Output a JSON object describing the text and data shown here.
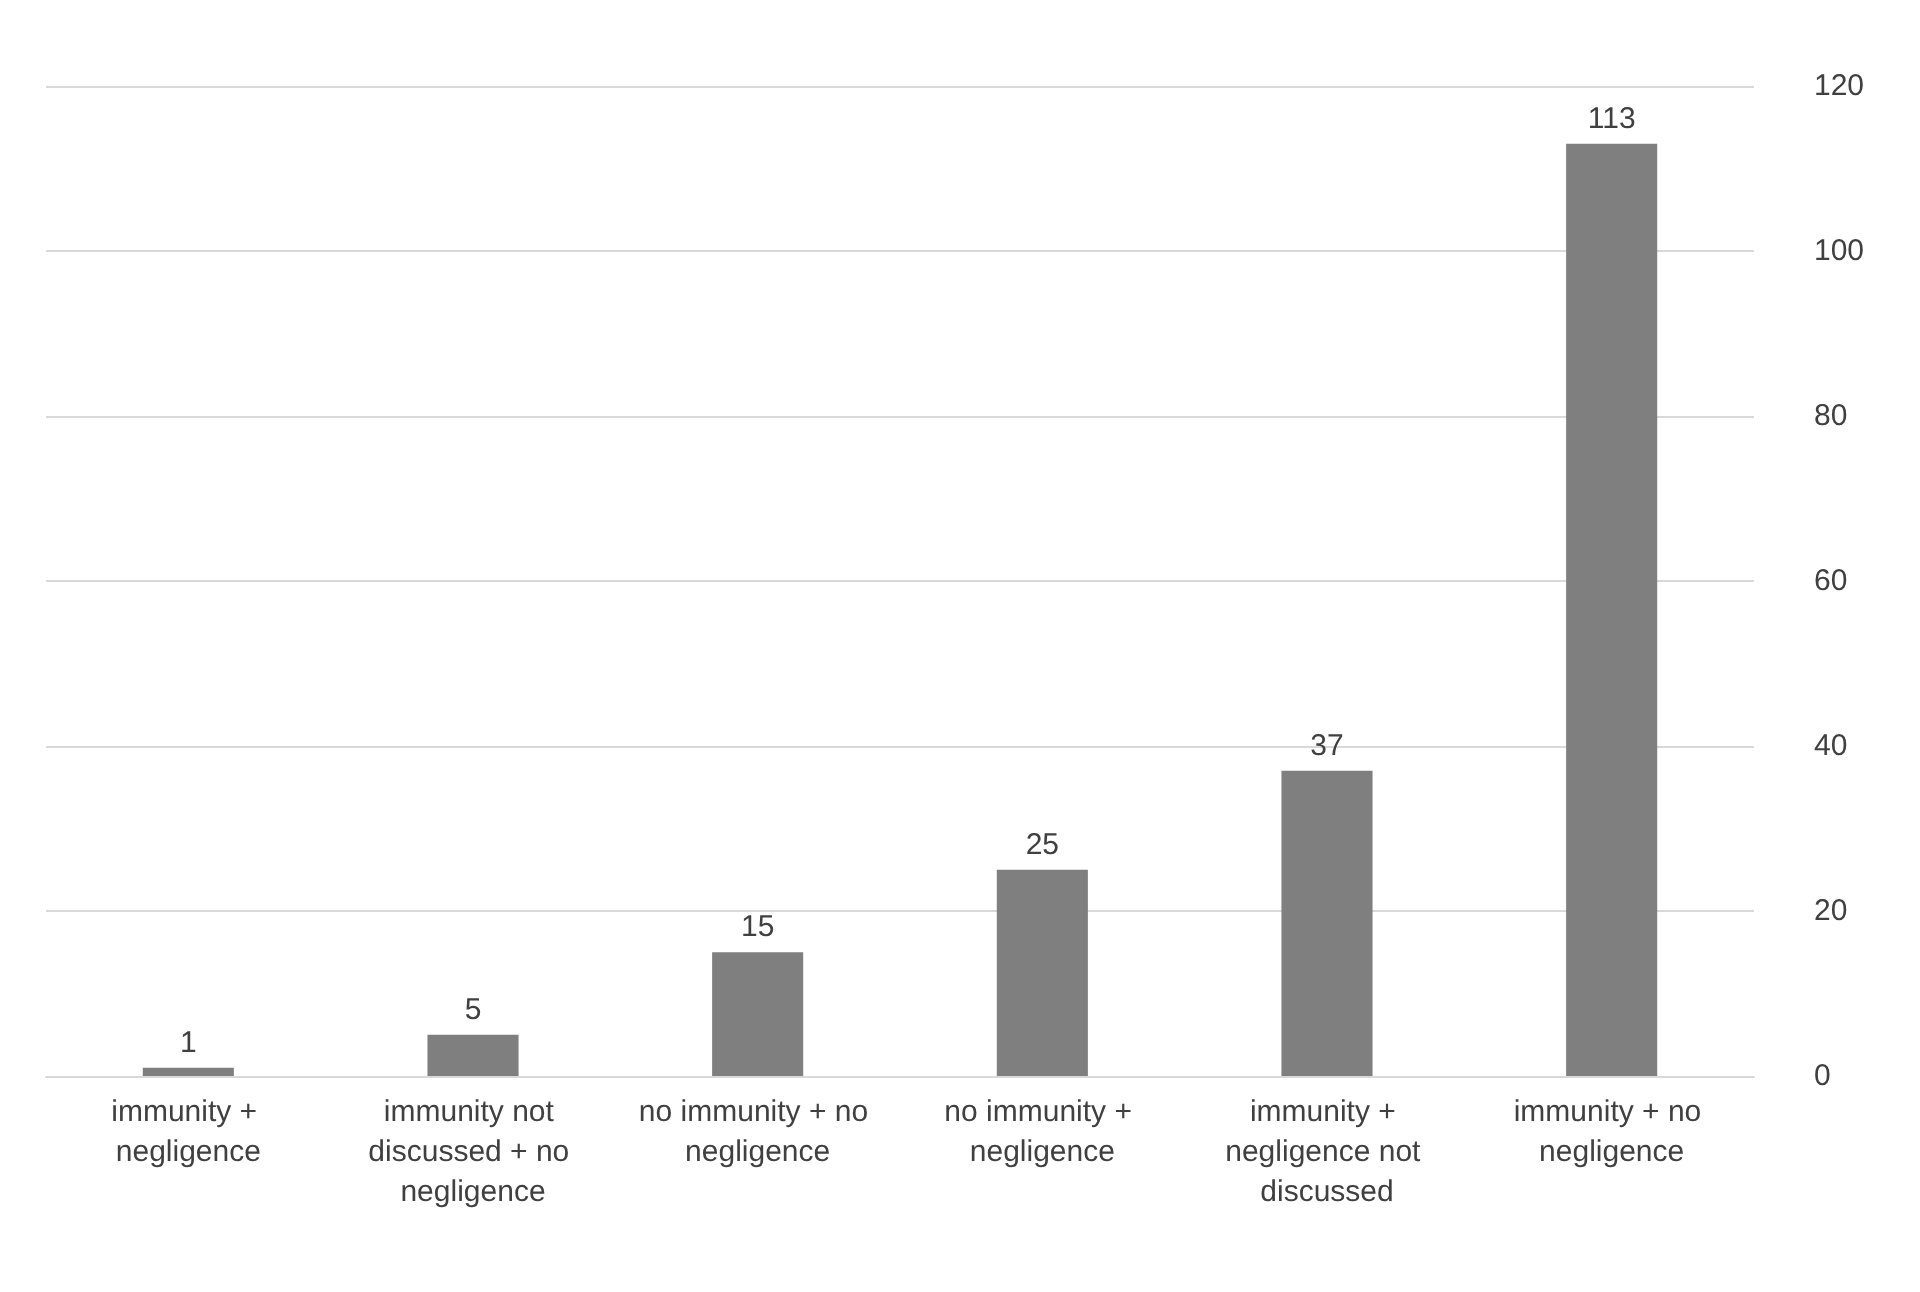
{
  "chart_data": {
    "type": "bar",
    "categories": [
      "immunity + negligence",
      "immunity not discussed + no negligence",
      "no immunity + no negligence",
      "no immunity + negligence",
      "immunity + negligence not discussed",
      "immunity + no negligence"
    ],
    "values": [
      1,
      5,
      15,
      25,
      37,
      113
    ],
    "color": "#7f7f7f",
    "ylim": [
      0,
      120
    ],
    "yticks": [
      0,
      20,
      40,
      60,
      80,
      100,
      120
    ],
    "grid": "y",
    "data_labels": true
  }
}
